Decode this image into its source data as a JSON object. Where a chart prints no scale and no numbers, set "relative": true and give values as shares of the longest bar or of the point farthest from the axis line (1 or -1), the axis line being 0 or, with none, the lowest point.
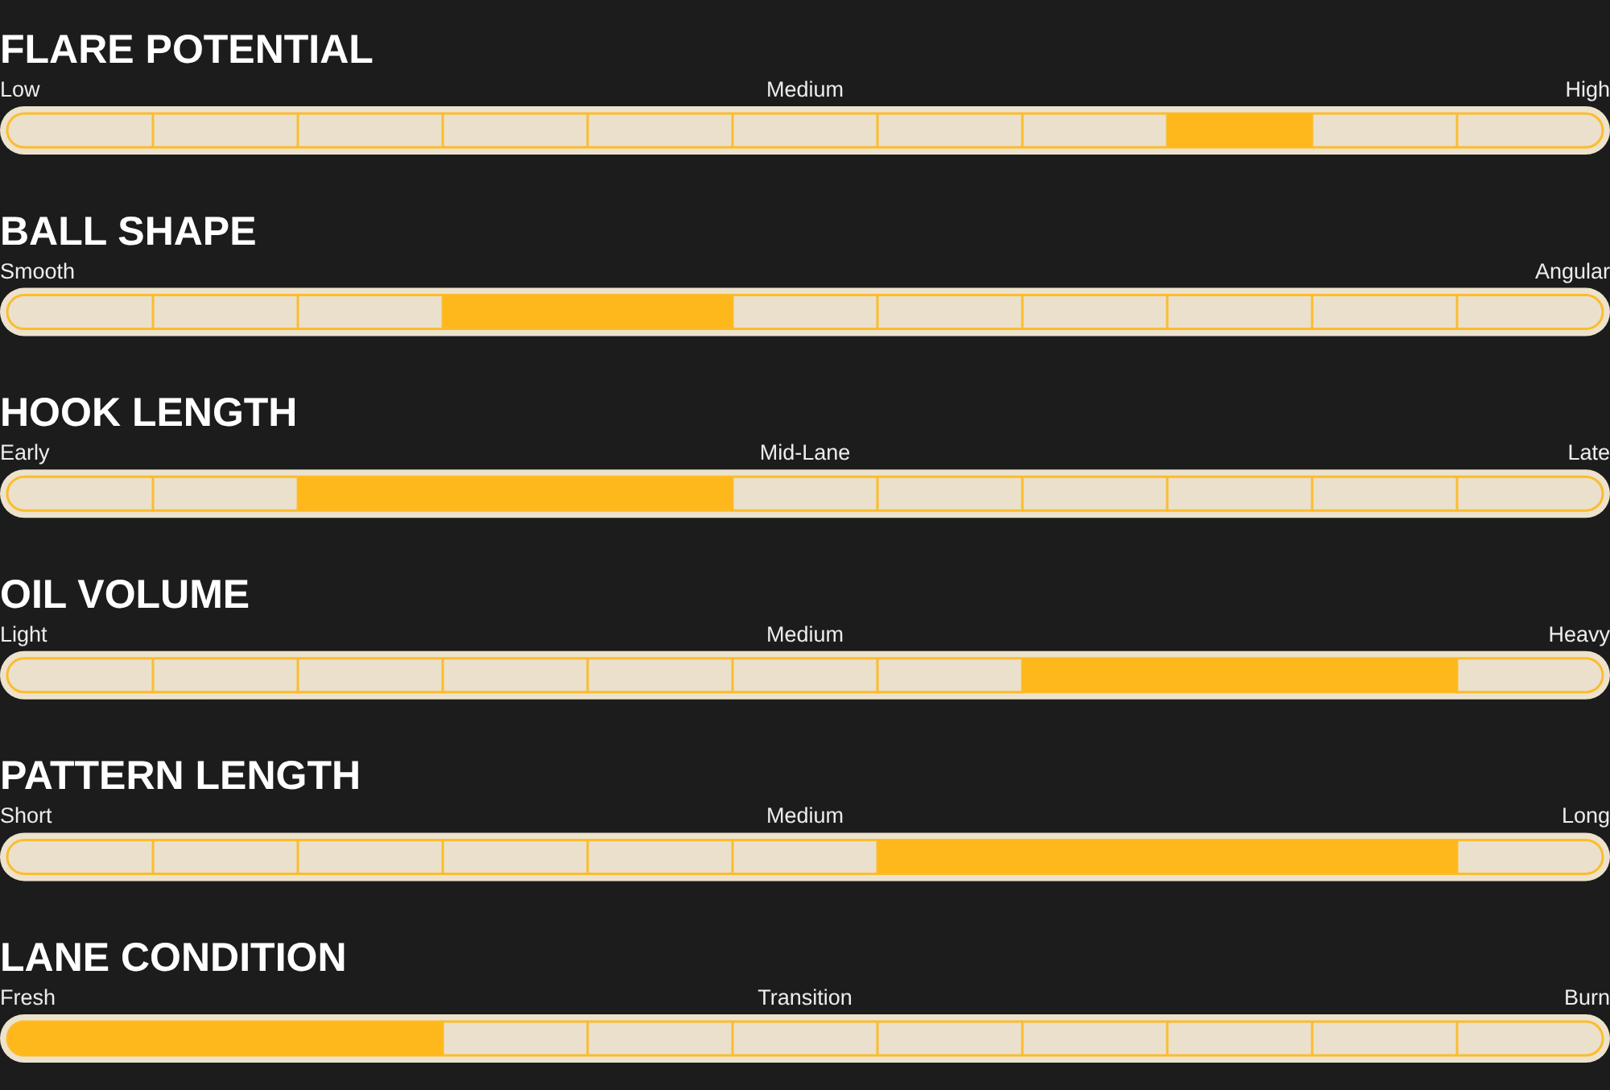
{
  "chart_data": [
    {
      "type": "bar",
      "relative": true,
      "title": "FLARE POTENTIAL",
      "categories": [
        "Low",
        null,
        null,
        null,
        null,
        "Medium",
        null,
        null,
        null,
        null,
        "High"
      ],
      "values": [
        0,
        0,
        0,
        0,
        0,
        0,
        0,
        0,
        1,
        0,
        0
      ],
      "color": "#ffb81c"
    },
    {
      "type": "bar",
      "relative": true,
      "title": "BALL SHAPE",
      "categories": [
        "Smooth",
        null,
        null,
        null,
        null,
        null,
        null,
        null,
        null,
        null,
        "Angular"
      ],
      "values": [
        0,
        0,
        0,
        1,
        1,
        0,
        0,
        0,
        0,
        0,
        0
      ],
      "color": "#ffb81c"
    },
    {
      "type": "bar",
      "relative": true,
      "title": "HOOK LENGTH",
      "categories": [
        "Early",
        null,
        null,
        null,
        null,
        "Mid-Lane",
        null,
        null,
        null,
        null,
        "Late"
      ],
      "values": [
        0,
        0,
        1,
        1,
        1,
        0,
        0,
        0,
        0,
        0,
        0
      ],
      "color": "#ffb81c"
    },
    {
      "type": "bar",
      "relative": true,
      "title": "OIL VOLUME",
      "categories": [
        "Light",
        null,
        null,
        null,
        null,
        "Medium",
        null,
        null,
        null,
        null,
        "Heavy"
      ],
      "values": [
        0,
        0,
        0,
        0,
        0,
        0,
        0,
        1,
        1,
        1,
        0
      ],
      "color": "#ffb81c"
    },
    {
      "type": "bar",
      "relative": true,
      "title": "PATTERN LENGTH",
      "categories": [
        "Short",
        null,
        null,
        null,
        null,
        "Medium",
        null,
        null,
        null,
        null,
        "Long"
      ],
      "values": [
        0,
        0,
        0,
        0,
        0,
        0,
        1,
        1,
        1,
        1,
        0
      ],
      "color": "#ffb81c"
    },
    {
      "type": "bar",
      "relative": true,
      "title": "LANE CONDITION",
      "categories": [
        "Fresh",
        null,
        null,
        null,
        null,
        "Transition",
        null,
        null,
        null,
        null,
        "Burn"
      ],
      "values": [
        1,
        1,
        1,
        0,
        0,
        0,
        0,
        0,
        0,
        0,
        0
      ],
      "color": "#ffb81c"
    }
  ]
}
